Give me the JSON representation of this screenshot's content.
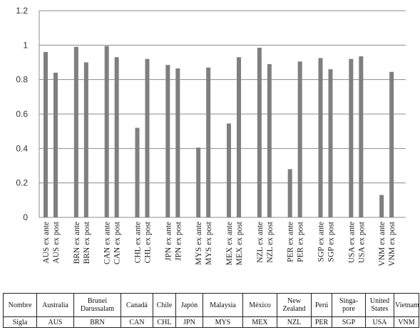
{
  "chart_data": {
    "type": "bar",
    "categories": [
      "AUS ex ante",
      "AUS ex post",
      "BRN ex ante",
      "BRN ex post",
      "CAN ex ante",
      "CAN ex post",
      "CHL ex ante",
      "CHL ex post",
      "JPN ex ante",
      "JPN ex post",
      "MYS ex ante",
      "MYS ex post",
      "MEX ex ante",
      "MEX ex post",
      "NZL ex ante",
      "NZL ex post",
      "PER ex ante",
      "PER ex post",
      "SGP ex ante",
      "SGP ex post",
      "USA ex ante",
      "USA ex post",
      "VNM ex ante",
      "VNM ex post"
    ],
    "values": [
      0.96,
      0.84,
      0.99,
      0.9,
      0.995,
      0.93,
      0.52,
      0.92,
      0.885,
      0.865,
      0.405,
      0.87,
      0.545,
      0.93,
      0.985,
      0.89,
      0.28,
      0.905,
      0.925,
      0.86,
      0.92,
      0.935,
      0.13,
      0.845
    ],
    "ylim": [
      0,
      1.2
    ],
    "yticks": [
      "0",
      "0.2",
      "0.4",
      "0.6",
      "0.8",
      "1",
      "1.2"
    ],
    "grid": true,
    "legend": "none",
    "bar_color": "#7f7f7f",
    "grid_color": "#8c8c8c"
  },
  "table": {
    "row1": [
      "Nombre",
      "Australia",
      "Brunei\nDarussalam",
      "Canadá",
      "Chile",
      "Japón",
      "Malaysia",
      "México",
      "New\nZealand",
      "Perú",
      "Singa-\npore",
      "United\nStates",
      "Vietnam"
    ],
    "row2": [
      "Sigla",
      "AUS",
      "BRN",
      "CAN",
      "CHL",
      "JPN",
      "MYS",
      "MEX",
      "NZL",
      "PER",
      "SGP",
      "USA",
      "VNM"
    ]
  }
}
